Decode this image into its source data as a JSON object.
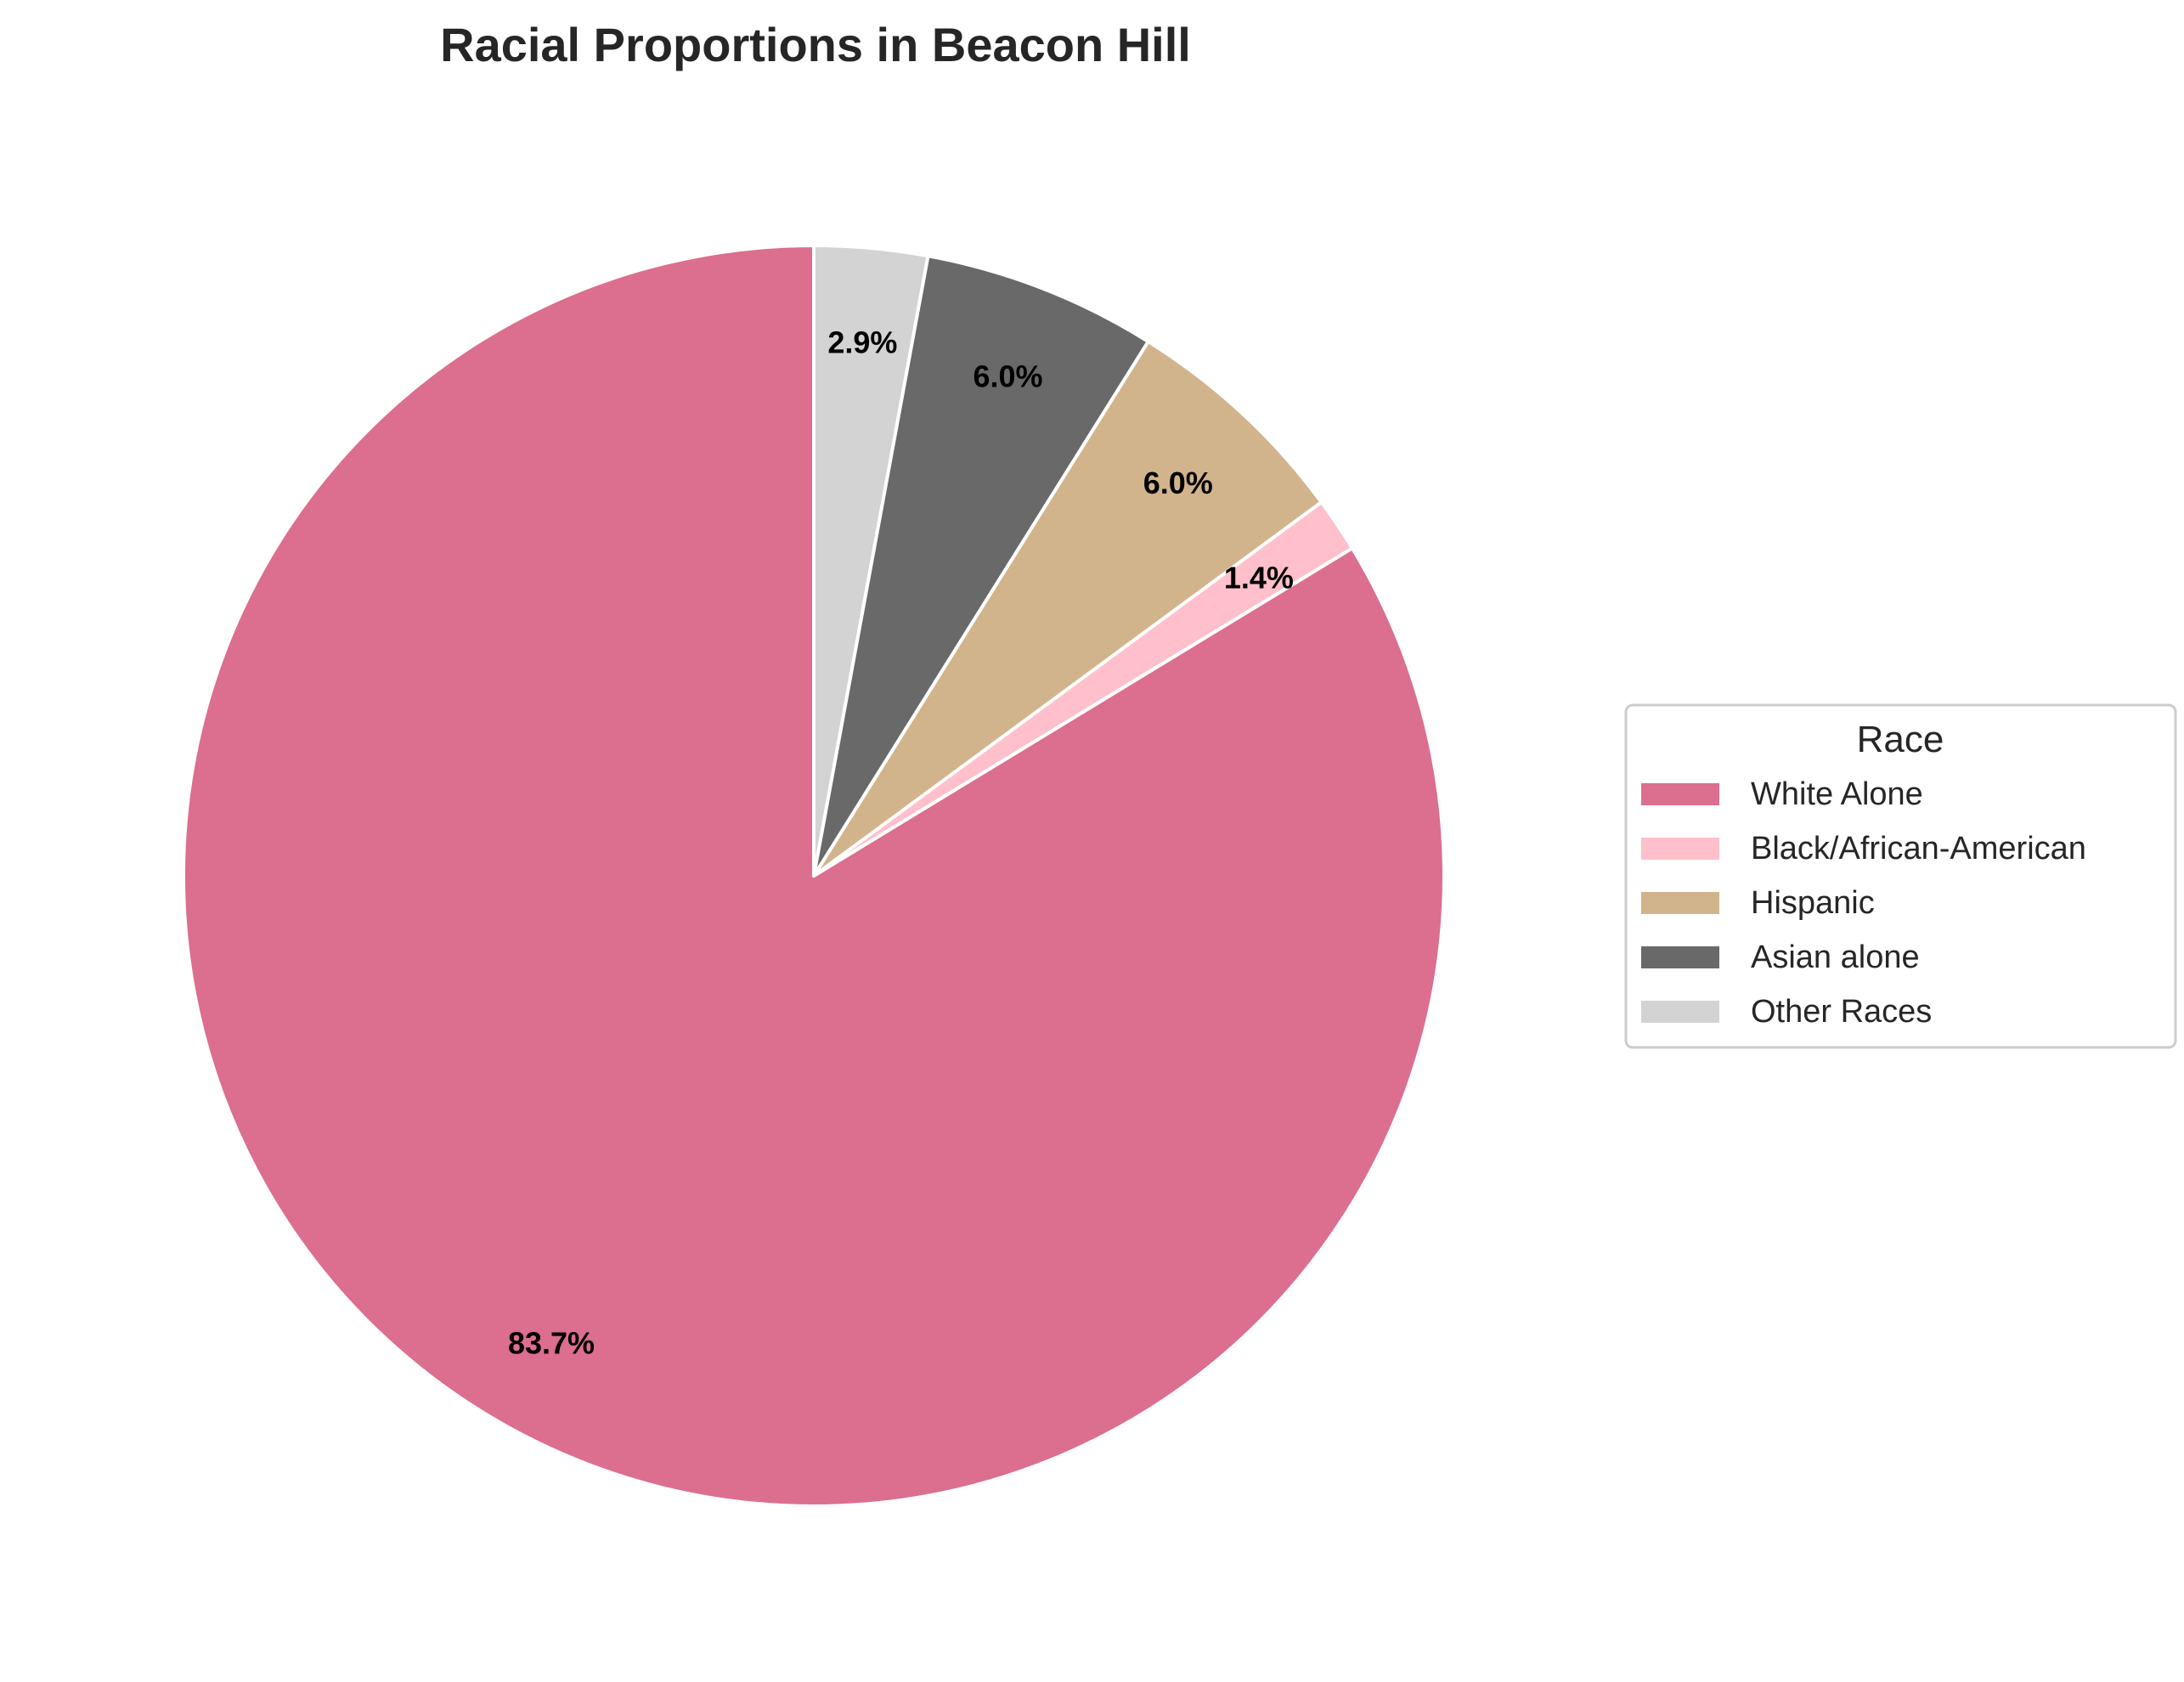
{
  "chart_data": {
    "type": "pie",
    "title": "Racial Proportions in Beacon Hill",
    "start_angle_deg": 90,
    "direction": "counterclockwise",
    "slices": [
      {
        "label": "White Alone",
        "value": 83.7,
        "pct_label": "83.7%",
        "color": "#dc6e8f"
      },
      {
        "label": "Black/African-American",
        "value": 1.4,
        "pct_label": "1.4%",
        "color": "#ffc0cb"
      },
      {
        "label": "Hispanic",
        "value": 6.0,
        "pct_label": "6.0%",
        "color": "#d2b48c"
      },
      {
        "label": "Asian alone",
        "value": 6.0,
        "pct_label": "6.0%",
        "color": "#696969"
      },
      {
        "label": "Other Races",
        "value": 2.9,
        "pct_label": "2.9%",
        "color": "#d3d3d3"
      }
    ],
    "legend": {
      "title": "Race",
      "placement": "center-right"
    },
    "wedge_edge_color": "#ffffff"
  }
}
